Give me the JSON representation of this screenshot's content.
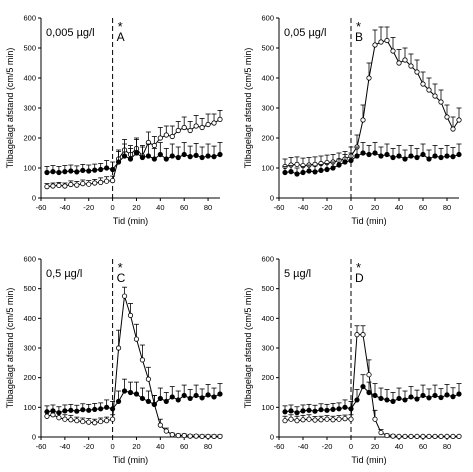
{
  "chart_data": [
    {
      "type": "line",
      "panel_label": "A",
      "concentration": "0,005 µg/l",
      "significance_marker": "*",
      "xlabel": "Tid (min)",
      "ylabel": "Tilbagelagt afstand (cm/5 min)",
      "xlim": [
        -60,
        90
      ],
      "ylim": [
        0,
        600
      ],
      "xticks": [
        "-60",
        "-40",
        "-20",
        "0",
        "20",
        "40",
        "60",
        "80"
      ],
      "yticks": [
        "0",
        "100",
        "200",
        "300",
        "400",
        "500",
        "600"
      ],
      "x": [
        -55,
        -50,
        -45,
        -40,
        -35,
        -30,
        -25,
        -20,
        -15,
        -10,
        -5,
        0,
        5,
        10,
        15,
        20,
        25,
        30,
        35,
        40,
        45,
        50,
        55,
        60,
        65,
        70,
        75,
        80,
        85,
        90
      ],
      "series": [
        {
          "marker": "filled",
          "values": [
            85,
            88,
            85,
            88,
            90,
            87,
            92,
            90,
            93,
            95,
            100,
            95,
            120,
            140,
            130,
            150,
            135,
            140,
            130,
            145,
            130,
            140,
            135,
            145,
            138,
            142,
            135,
            140,
            138,
            145
          ],
          "errors": [
            20,
            20,
            20,
            20,
            20,
            20,
            20,
            20,
            20,
            20,
            25,
            25,
            35,
            40,
            35,
            45,
            40,
            40,
            35,
            40,
            35,
            40,
            35,
            40,
            35,
            40,
            35,
            40,
            35,
            40
          ]
        },
        {
          "marker": "open",
          "values": [
            38,
            40,
            42,
            40,
            45,
            43,
            48,
            46,
            50,
            52,
            56,
            58,
            130,
            160,
            145,
            165,
            140,
            185,
            175,
            200,
            210,
            205,
            225,
            235,
            225,
            240,
            235,
            245,
            250,
            262
          ],
          "errors": [
            10,
            10,
            10,
            10,
            12,
            12,
            12,
            12,
            12,
            15,
            15,
            15,
            30,
            35,
            30,
            35,
            30,
            35,
            30,
            35,
            30,
            35,
            30,
            35,
            30,
            35,
            30,
            35,
            30,
            30
          ]
        }
      ]
    },
    {
      "type": "line",
      "panel_label": "B",
      "concentration": "0,05 µg/l",
      "significance_marker": "*",
      "xlabel": "Tid (min)",
      "ylabel": "Tilbagelagt afstand (cm/5 min)",
      "xlim": [
        -60,
        90
      ],
      "ylim": [
        0,
        600
      ],
      "xticks": [
        "-60",
        "-40",
        "-20",
        "0",
        "20",
        "40",
        "60",
        "80"
      ],
      "yticks": [
        "0",
        "100",
        "200",
        "300",
        "400",
        "500",
        "600"
      ],
      "x": [
        -55,
        -50,
        -45,
        -40,
        -35,
        -30,
        -25,
        -20,
        -15,
        -10,
        -5,
        0,
        5,
        10,
        15,
        20,
        25,
        30,
        35,
        40,
        45,
        50,
        55,
        60,
        65,
        70,
        75,
        80,
        85,
        90
      ],
      "series": [
        {
          "marker": "filled",
          "values": [
            85,
            88,
            80,
            85,
            90,
            87,
            92,
            95,
            100,
            110,
            120,
            125,
            140,
            150,
            145,
            150,
            140,
            145,
            135,
            140,
            130,
            140,
            135,
            145,
            130,
            140,
            135,
            140,
            138,
            145
          ],
          "errors": [
            20,
            20,
            20,
            20,
            20,
            20,
            20,
            20,
            20,
            20,
            25,
            25,
            30,
            35,
            30,
            35,
            30,
            35,
            30,
            35,
            30,
            35,
            30,
            35,
            30,
            35,
            30,
            35,
            30,
            35
          ]
        },
        {
          "marker": "open",
          "values": [
            105,
            110,
            112,
            108,
            110,
            112,
            115,
            118,
            120,
            125,
            130,
            140,
            170,
            260,
            400,
            510,
            520,
            525,
            490,
            450,
            460,
            440,
            420,
            380,
            360,
            340,
            320,
            270,
            230,
            260
          ],
          "errors": [
            25,
            25,
            25,
            25,
            25,
            25,
            25,
            25,
            25,
            25,
            25,
            30,
            40,
            50,
            50,
            50,
            50,
            45,
            45,
            45,
            40,
            40,
            40,
            40,
            40,
            40,
            40,
            40,
            40,
            40
          ]
        }
      ]
    },
    {
      "type": "line",
      "panel_label": "C",
      "concentration": "0,5 µg/l",
      "significance_marker": "*",
      "xlabel": "Tid (min)",
      "ylabel": "Tilbagelagt afstand (cm/5 min)",
      "xlim": [
        -60,
        90
      ],
      "ylim": [
        0,
        600
      ],
      "xticks": [
        "-60",
        "-40",
        "-20",
        "0",
        "20",
        "40",
        "60",
        "80"
      ],
      "yticks": [
        "0",
        "100",
        "200",
        "300",
        "400",
        "500",
        "600"
      ],
      "x": [
        -55,
        -50,
        -45,
        -40,
        -35,
        -30,
        -25,
        -20,
        -15,
        -10,
        -5,
        0,
        5,
        10,
        15,
        20,
        25,
        30,
        35,
        40,
        45,
        50,
        55,
        60,
        65,
        70,
        75,
        80,
        85,
        90
      ],
      "series": [
        {
          "marker": "filled",
          "values": [
            85,
            88,
            82,
            88,
            90,
            87,
            92,
            90,
            93,
            95,
            100,
            95,
            120,
            155,
            150,
            145,
            130,
            120,
            110,
            130,
            120,
            135,
            125,
            140,
            130,
            140,
            132,
            142,
            135,
            145
          ],
          "errors": [
            20,
            20,
            20,
            20,
            20,
            20,
            20,
            20,
            20,
            20,
            25,
            25,
            35,
            40,
            35,
            40,
            35,
            35,
            30,
            35,
            30,
            35,
            30,
            35,
            30,
            35,
            30,
            35,
            30,
            35
          ]
        },
        {
          "marker": "open",
          "values": [
            70,
            75,
            65,
            60,
            58,
            55,
            52,
            50,
            48,
            52,
            55,
            60,
            300,
            475,
            410,
            330,
            260,
            195,
            110,
            40,
            20,
            8,
            5,
            5,
            3,
            3,
            2,
            2,
            2,
            2
          ],
          "errors": [
            15,
            15,
            15,
            15,
            15,
            12,
            12,
            12,
            12,
            12,
            12,
            15,
            60,
            30,
            40,
            50,
            50,
            40,
            30,
            20,
            10,
            5,
            5,
            5,
            5,
            5,
            5,
            5,
            5,
            5
          ]
        }
      ]
    },
    {
      "type": "line",
      "panel_label": "D",
      "concentration": "5 µg/l",
      "significance_marker": "*",
      "xlabel": "Tid (min)",
      "ylabel": "Tilbagelagt afstand (cm/5 min)",
      "xlim": [
        -60,
        90
      ],
      "ylim": [
        0,
        600
      ],
      "xticks": [
        "-60",
        "-40",
        "-20",
        "0",
        "20",
        "40",
        "60",
        "80"
      ],
      "yticks": [
        "0",
        "100",
        "200",
        "300",
        "400",
        "500",
        "600"
      ],
      "x": [
        -55,
        -50,
        -45,
        -40,
        -35,
        -30,
        -25,
        -20,
        -15,
        -10,
        -5,
        0,
        5,
        10,
        15,
        20,
        25,
        30,
        35,
        40,
        45,
        50,
        55,
        60,
        65,
        70,
        75,
        80,
        85,
        90
      ],
      "series": [
        {
          "marker": "filled",
          "values": [
            85,
            88,
            82,
            88,
            90,
            87,
            92,
            90,
            93,
            95,
            100,
            95,
            125,
            170,
            150,
            140,
            130,
            125,
            120,
            130,
            125,
            135,
            128,
            140,
            132,
            140,
            133,
            142,
            136,
            145
          ],
          "errors": [
            20,
            20,
            20,
            20,
            20,
            20,
            20,
            20,
            20,
            20,
            25,
            25,
            35,
            40,
            35,
            40,
            35,
            35,
            30,
            35,
            30,
            35,
            30,
            35,
            30,
            35,
            30,
            35,
            30,
            35
          ]
        },
        {
          "marker": "open",
          "values": [
            55,
            60,
            55,
            58,
            60,
            57,
            58,
            60,
            58,
            60,
            62,
            60,
            345,
            345,
            210,
            60,
            15,
            5,
            3,
            2,
            2,
            2,
            2,
            2,
            2,
            2,
            2,
            2,
            2,
            2
          ],
          "errors": [
            15,
            15,
            15,
            15,
            15,
            12,
            12,
            12,
            12,
            12,
            12,
            15,
            30,
            30,
            50,
            30,
            10,
            5,
            5,
            3,
            3,
            3,
            3,
            3,
            3,
            3,
            3,
            3,
            3,
            3
          ]
        }
      ]
    }
  ]
}
